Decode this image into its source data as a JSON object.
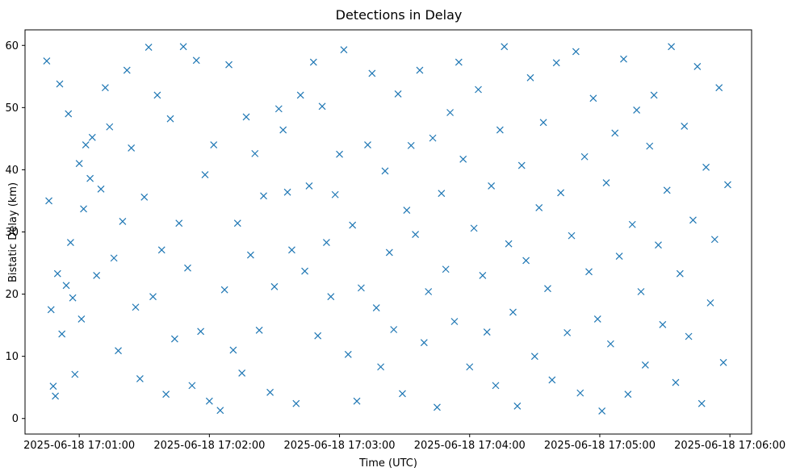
{
  "chart_data": {
    "type": "scatter",
    "title": "Detections in Delay",
    "xlabel": "Time (UTC)",
    "ylabel": "Bistatic Delay (km)",
    "marker": "x",
    "color": "#1f77b4",
    "grid": false,
    "x_ticks": [
      "2025-06-18 17:01:00",
      "2025-06-18 17:02:00",
      "2025-06-18 17:03:00",
      "2025-06-18 17:04:00",
      "2025-06-18 17:05:00",
      "2025-06-18 17:06:00"
    ],
    "y_ticks": [
      "0",
      "10",
      "20",
      "30",
      "40",
      "50",
      "60"
    ],
    "xlim": [
      "2025-06-18 17:00:35",
      "2025-06-18 17:06:10"
    ],
    "ylim": [
      -2.5,
      62.5
    ],
    "points": [
      [
        "17:00:45",
        57.5
      ],
      [
        "17:00:46",
        35.0
      ],
      [
        "17:00:47",
        17.5
      ],
      [
        "17:00:48",
        5.2
      ],
      [
        "17:00:49",
        3.6
      ],
      [
        "17:00:50",
        23.3
      ],
      [
        "17:00:51",
        53.8
      ],
      [
        "17:00:52",
        13.6
      ],
      [
        "17:00:54",
        21.4
      ],
      [
        "17:00:55",
        49.0
      ],
      [
        "17:00:56",
        28.3
      ],
      [
        "17:00:57",
        19.4
      ],
      [
        "17:00:58",
        7.1
      ],
      [
        "17:01:00",
        41.0
      ],
      [
        "17:01:01",
        16.0
      ],
      [
        "17:01:02",
        33.7
      ],
      [
        "17:01:03",
        44.0
      ],
      [
        "17:01:05",
        38.6
      ],
      [
        "17:01:06",
        45.2
      ],
      [
        "17:01:08",
        23.0
      ],
      [
        "17:01:10",
        36.9
      ],
      [
        "17:01:12",
        53.2
      ],
      [
        "17:01:14",
        46.9
      ],
      [
        "17:01:16",
        25.8
      ],
      [
        "17:01:18",
        10.9
      ],
      [
        "17:01:20",
        31.7
      ],
      [
        "17:01:22",
        56.0
      ],
      [
        "17:01:24",
        43.5
      ],
      [
        "17:01:26",
        17.9
      ],
      [
        "17:01:28",
        6.4
      ],
      [
        "17:01:30",
        35.6
      ],
      [
        "17:01:32",
        59.7
      ],
      [
        "17:01:34",
        19.6
      ],
      [
        "17:01:36",
        52.0
      ],
      [
        "17:01:38",
        27.1
      ],
      [
        "17:01:40",
        3.9
      ],
      [
        "17:01:42",
        48.2
      ],
      [
        "17:01:44",
        12.8
      ],
      [
        "17:01:46",
        31.4
      ],
      [
        "17:01:48",
        59.8
      ],
      [
        "17:01:50",
        24.2
      ],
      [
        "17:01:52",
        5.3
      ],
      [
        "17:01:54",
        57.6
      ],
      [
        "17:01:56",
        14.0
      ],
      [
        "17:01:58",
        39.2
      ],
      [
        "17:02:00",
        2.8
      ],
      [
        "17:02:02",
        44.0
      ],
      [
        "17:02:05",
        1.3
      ],
      [
        "17:02:07",
        20.7
      ],
      [
        "17:02:09",
        56.9
      ],
      [
        "17:02:11",
        11.0
      ],
      [
        "17:02:13",
        31.4
      ],
      [
        "17:02:15",
        7.3
      ],
      [
        "17:02:17",
        48.5
      ],
      [
        "17:02:19",
        26.3
      ],
      [
        "17:02:21",
        42.6
      ],
      [
        "17:02:23",
        14.2
      ],
      [
        "17:02:25",
        35.8
      ],
      [
        "17:02:28",
        4.2
      ],
      [
        "17:02:30",
        21.2
      ],
      [
        "17:02:32",
        49.8
      ],
      [
        "17:02:34",
        46.4
      ],
      [
        "17:02:36",
        36.4
      ],
      [
        "17:02:38",
        27.1
      ],
      [
        "17:02:40",
        2.4
      ],
      [
        "17:02:42",
        52.0
      ],
      [
        "17:02:44",
        23.7
      ],
      [
        "17:02:46",
        37.4
      ],
      [
        "17:02:48",
        57.3
      ],
      [
        "17:02:50",
        13.3
      ],
      [
        "17:02:52",
        50.2
      ],
      [
        "17:02:54",
        28.3
      ],
      [
        "17:02:56",
        19.6
      ],
      [
        "17:02:58",
        36.0
      ],
      [
        "17:03:00",
        42.5
      ],
      [
        "17:03:02",
        59.3
      ],
      [
        "17:03:04",
        10.3
      ],
      [
        "17:03:06",
        31.1
      ],
      [
        "17:03:08",
        2.8
      ],
      [
        "17:03:10",
        21.0
      ],
      [
        "17:03:13",
        44.0
      ],
      [
        "17:03:15",
        55.5
      ],
      [
        "17:03:17",
        17.8
      ],
      [
        "17:03:19",
        8.3
      ],
      [
        "17:03:21",
        39.8
      ],
      [
        "17:03:23",
        26.7
      ],
      [
        "17:03:25",
        14.3
      ],
      [
        "17:03:27",
        52.2
      ],
      [
        "17:03:29",
        4.0
      ],
      [
        "17:03:31",
        33.5
      ],
      [
        "17:03:33",
        43.9
      ],
      [
        "17:03:35",
        29.6
      ],
      [
        "17:03:37",
        56.0
      ],
      [
        "17:03:39",
        12.2
      ],
      [
        "17:03:41",
        20.4
      ],
      [
        "17:03:43",
        45.1
      ],
      [
        "17:03:45",
        1.8
      ],
      [
        "17:03:47",
        36.2
      ],
      [
        "17:03:49",
        24.0
      ],
      [
        "17:03:51",
        49.2
      ],
      [
        "17:03:53",
        15.6
      ],
      [
        "17:03:55",
        57.3
      ],
      [
        "17:03:57",
        41.7
      ],
      [
        "17:04:00",
        8.3
      ],
      [
        "17:04:02",
        30.6
      ],
      [
        "17:04:04",
        52.9
      ],
      [
        "17:04:06",
        23.0
      ],
      [
        "17:04:08",
        13.9
      ],
      [
        "17:04:10",
        37.4
      ],
      [
        "17:04:12",
        5.3
      ],
      [
        "17:04:14",
        46.4
      ],
      [
        "17:04:16",
        59.8
      ],
      [
        "17:04:18",
        28.1
      ],
      [
        "17:04:20",
        17.1
      ],
      [
        "17:04:22",
        2.0
      ],
      [
        "17:04:24",
        40.7
      ],
      [
        "17:04:26",
        25.4
      ],
      [
        "17:04:28",
        54.8
      ],
      [
        "17:04:30",
        10.0
      ],
      [
        "17:04:32",
        33.9
      ],
      [
        "17:04:34",
        47.6
      ],
      [
        "17:04:36",
        20.9
      ],
      [
        "17:04:38",
        6.2
      ],
      [
        "17:04:40",
        57.2
      ],
      [
        "17:04:42",
        36.3
      ],
      [
        "17:04:45",
        13.8
      ],
      [
        "17:04:47",
        29.4
      ],
      [
        "17:04:49",
        59.0
      ],
      [
        "17:04:51",
        4.1
      ],
      [
        "17:04:53",
        42.1
      ],
      [
        "17:04:55",
        23.6
      ],
      [
        "17:04:57",
        51.5
      ],
      [
        "17:04:59",
        16.0
      ],
      [
        "17:05:01",
        1.2
      ],
      [
        "17:05:03",
        37.9
      ],
      [
        "17:05:05",
        12.0
      ],
      [
        "17:05:07",
        45.9
      ],
      [
        "17:05:09",
        26.1
      ],
      [
        "17:05:11",
        57.8
      ],
      [
        "17:05:13",
        3.9
      ],
      [
        "17:05:15",
        31.2
      ],
      [
        "17:05:17",
        49.6
      ],
      [
        "17:05:19",
        20.4
      ],
      [
        "17:05:21",
        8.6
      ],
      [
        "17:05:23",
        43.8
      ],
      [
        "17:05:25",
        52.0
      ],
      [
        "17:05:27",
        27.9
      ],
      [
        "17:05:29",
        15.1
      ],
      [
        "17:05:31",
        36.7
      ],
      [
        "17:05:33",
        59.8
      ],
      [
        "17:05:35",
        5.8
      ],
      [
        "17:05:37",
        23.3
      ],
      [
        "17:05:39",
        47.0
      ],
      [
        "17:05:41",
        13.2
      ],
      [
        "17:05:43",
        31.9
      ],
      [
        "17:05:45",
        56.6
      ],
      [
        "17:05:47",
        2.4
      ],
      [
        "17:05:49",
        40.4
      ],
      [
        "17:05:51",
        18.6
      ],
      [
        "17:05:53",
        28.8
      ],
      [
        "17:05:55",
        53.2
      ],
      [
        "17:05:57",
        9.0
      ],
      [
        "17:05:59",
        37.6
      ]
    ]
  }
}
